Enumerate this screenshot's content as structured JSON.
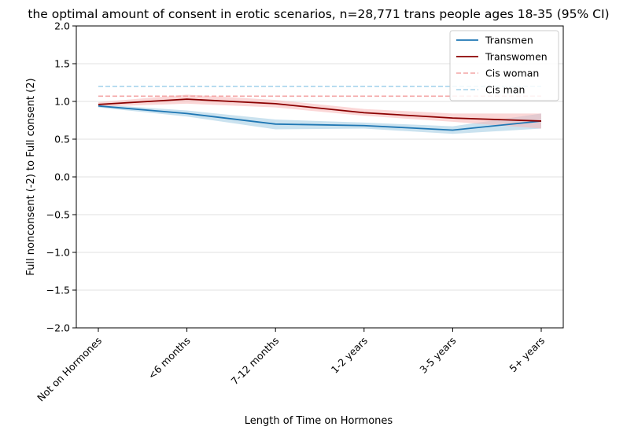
{
  "chart_data": {
    "type": "line",
    "title": "the optimal amount of consent in erotic scenarios, n=28,771 trans people ages 18-35 (95% CI)",
    "xlabel": "Length of Time on Hormones",
    "ylabel": "Full nonconsent (-2) to Full consent (2)",
    "categories": [
      "Not on Hormones",
      "<6 months",
      "7-12 months",
      "1-2 years",
      "3-5 years",
      "5+ years"
    ],
    "ylim": [
      -2.0,
      2.0
    ],
    "yticks": [
      "−2.0",
      "−1.5",
      "−1.0",
      "−0.5",
      "0.0",
      "0.5",
      "1.0",
      "1.5",
      "2.0"
    ],
    "ytick_values": [
      -2.0,
      -1.5,
      -1.0,
      -0.5,
      0.0,
      0.5,
      1.0,
      1.5,
      2.0
    ],
    "grid": "horizontal",
    "legend_position": "top-right",
    "series": [
      {
        "name": "Transmen",
        "color": "#1f77b4",
        "band_color": "#9ecae1",
        "style": "solid",
        "values": [
          0.94,
          0.84,
          0.7,
          0.68,
          0.62,
          0.74
        ],
        "ci_low": [
          0.92,
          0.8,
          0.63,
          0.64,
          0.57,
          0.64
        ],
        "ci_high": [
          0.96,
          0.88,
          0.76,
          0.72,
          0.67,
          0.84
        ]
      },
      {
        "name": "Transwomen",
        "color": "#8b0000",
        "band_color": "#f7b6b6",
        "style": "solid",
        "values": [
          0.96,
          1.03,
          0.97,
          0.85,
          0.78,
          0.74
        ],
        "ci_low": [
          0.93,
          0.97,
          0.92,
          0.81,
          0.73,
          0.64
        ],
        "ci_high": [
          0.99,
          1.09,
          1.02,
          0.9,
          0.84,
          0.84
        ]
      },
      {
        "name": "Cis woman",
        "color": "#f4a6a6",
        "style": "dashed",
        "values": [
          1.07,
          1.07,
          1.07,
          1.07,
          1.07,
          1.07
        ]
      },
      {
        "name": "Cis man",
        "color": "#a6d4ec",
        "style": "dashed",
        "values": [
          1.2,
          1.2,
          1.2,
          1.2,
          1.2,
          1.2
        ]
      }
    ]
  }
}
